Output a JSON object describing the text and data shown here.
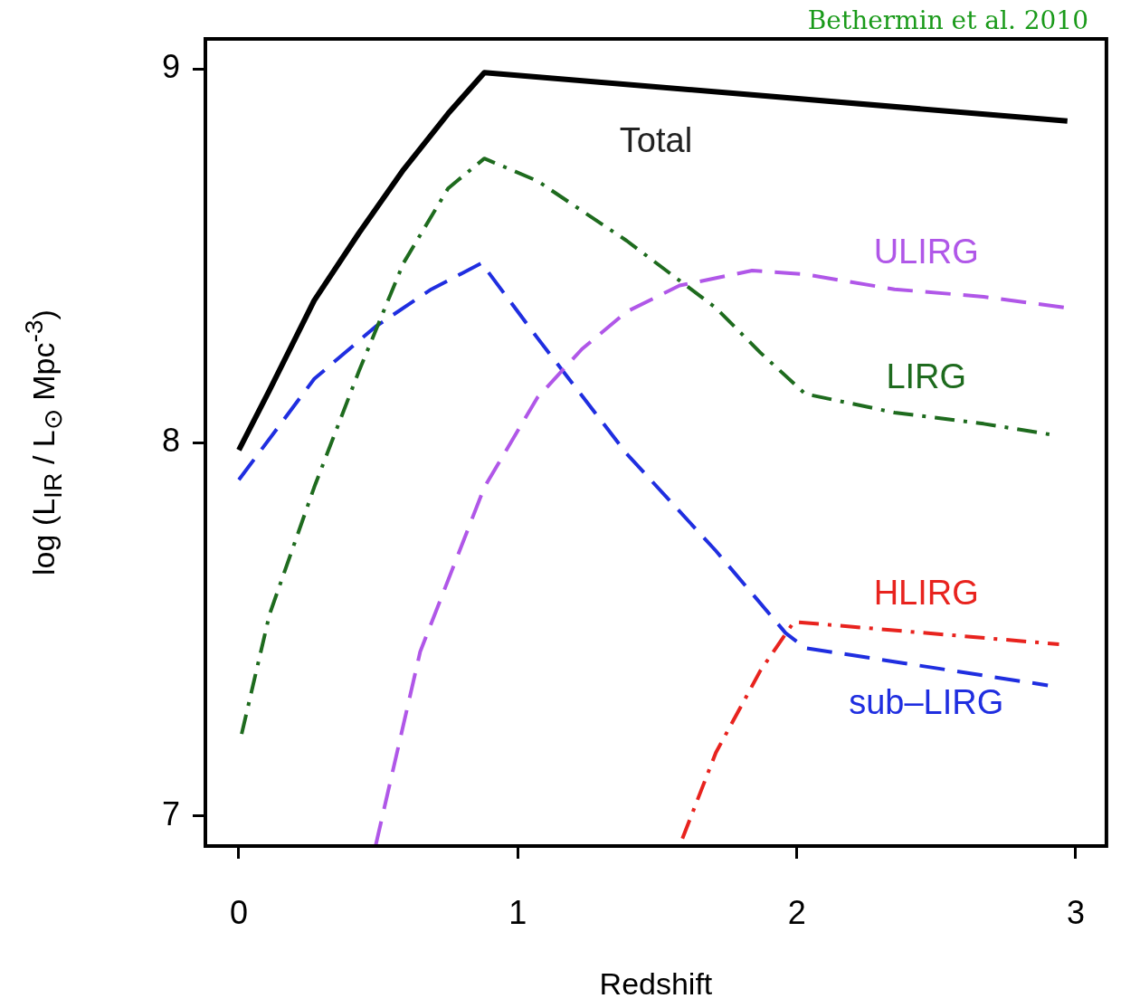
{
  "chart_data": {
    "type": "line",
    "xlabel": "Redshift",
    "ylabel": "log (L$_{IR}$ / L$_{⊙}$ Mpc$^{-3}$)",
    "annotations": [
      "Bethermin et al. 2010"
    ],
    "xlim": [
      -0.12,
      3.11
    ],
    "xticks": [
      0,
      1,
      2,
      3
    ],
    "ylim": [
      6.92,
      9.08
    ],
    "yticks": [
      7,
      8,
      9
    ],
    "grid": false,
    "legend": false,
    "marker": "none",
    "series": [
      {
        "name": "Total",
        "color": "#000000",
        "line_style": "solid",
        "x": [
          0,
          0.11,
          0.27,
          0.43,
          0.59,
          0.75,
          0.88,
          2.97
        ],
        "values": [
          7.98,
          8.14,
          8.38,
          8.56,
          8.73,
          8.88,
          8.99,
          8.86
        ]
      },
      {
        "name": "ULIRG",
        "color": "#b057e8",
        "line_style": "dashed",
        "x": [
          0.49,
          0.65,
          0.88,
          1.07,
          1.23,
          1.39,
          1.58,
          1.84,
          2.03,
          2.35,
          2.67,
          2.97
        ],
        "values": [
          6.92,
          7.44,
          7.88,
          8.12,
          8.25,
          8.35,
          8.42,
          8.46,
          8.45,
          8.41,
          8.39,
          8.36
        ]
      },
      {
        "name": "LIRG",
        "color": "#1e6b1e",
        "line_style": "dashdot",
        "x": [
          0.01,
          0.11,
          0.27,
          0.43,
          0.59,
          0.75,
          0.88,
          1.07,
          1.39,
          1.71,
          1.87,
          2.03,
          2.35,
          2.67,
          2.92
        ],
        "values": [
          7.22,
          7.54,
          7.88,
          8.19,
          8.48,
          8.68,
          8.76,
          8.7,
          8.54,
          8.36,
          8.24,
          8.13,
          8.08,
          8.05,
          8.02
        ]
      },
      {
        "name": "HLIRG",
        "color": "#e8231e",
        "line_style": "dashdot",
        "x": [
          1.59,
          1.71,
          1.87,
          1.99,
          2.94
        ],
        "values": [
          6.94,
          7.17,
          7.39,
          7.52,
          7.46
        ]
      },
      {
        "name": "sub–LIRG",
        "color": "#1f2ee0",
        "line_style": "dashed",
        "x": [
          0,
          0.27,
          0.49,
          0.69,
          0.87,
          1.07,
          1.39,
          1.71,
          1.96,
          2.03,
          2.9
        ],
        "values": [
          7.9,
          8.17,
          8.31,
          8.41,
          8.48,
          8.28,
          7.97,
          7.71,
          7.49,
          7.45,
          7.35
        ]
      }
    ]
  }
}
